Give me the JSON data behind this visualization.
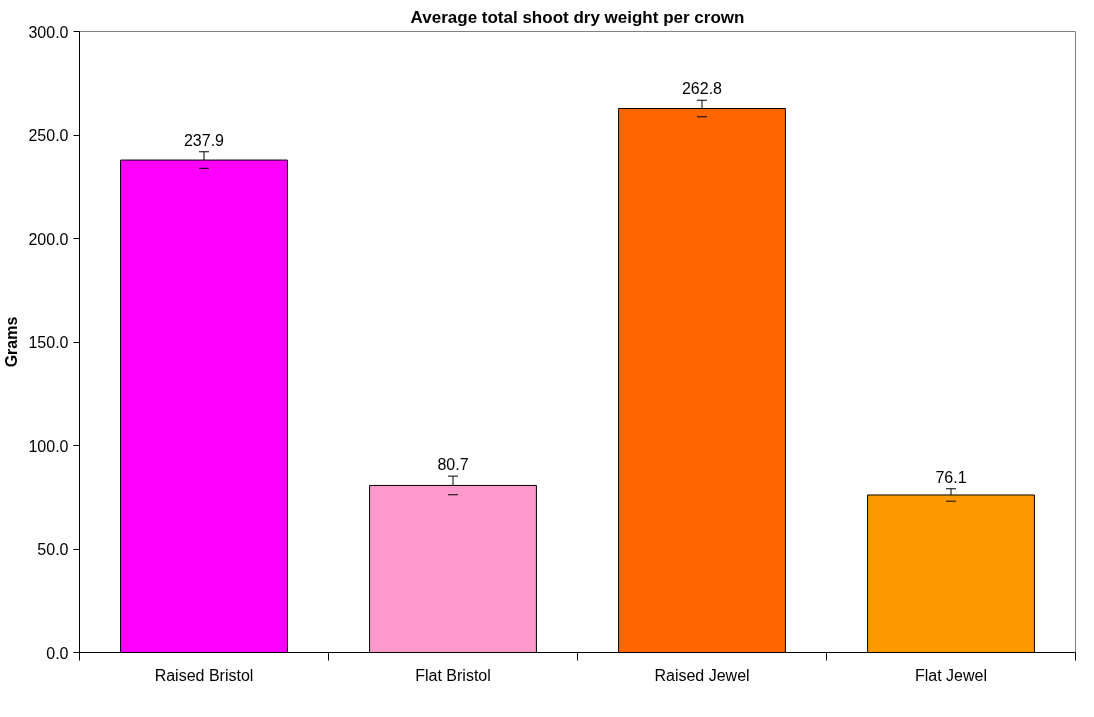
{
  "chart_data": {
    "type": "bar",
    "title": "Average total shoot dry weight per crown",
    "ylabel": "Grams",
    "categories": [
      "Raised Bristol",
      "Flat Bristol",
      "Raised Jewel",
      "Flat Jewel"
    ],
    "values": [
      237.9,
      80.7,
      262.8,
      76.1
    ],
    "colors": [
      "#ff00ff",
      "#ff99cc",
      "#ff6600",
      "#ff9900"
    ],
    "errors": [
      4,
      4.5,
      4,
      3
    ],
    "data_labels": true,
    "ylim": [
      0,
      300
    ],
    "yticks": [
      {
        "value": 0,
        "label": "0.0"
      },
      {
        "value": 50,
        "label": "50.0"
      },
      {
        "value": 100,
        "label": "100.0"
      },
      {
        "value": 150,
        "label": "150.0"
      },
      {
        "value": 200,
        "label": "200.0"
      },
      {
        "value": 250,
        "label": "250.0"
      },
      {
        "value": 300,
        "label": "300.0"
      }
    ],
    "grid": false
  }
}
